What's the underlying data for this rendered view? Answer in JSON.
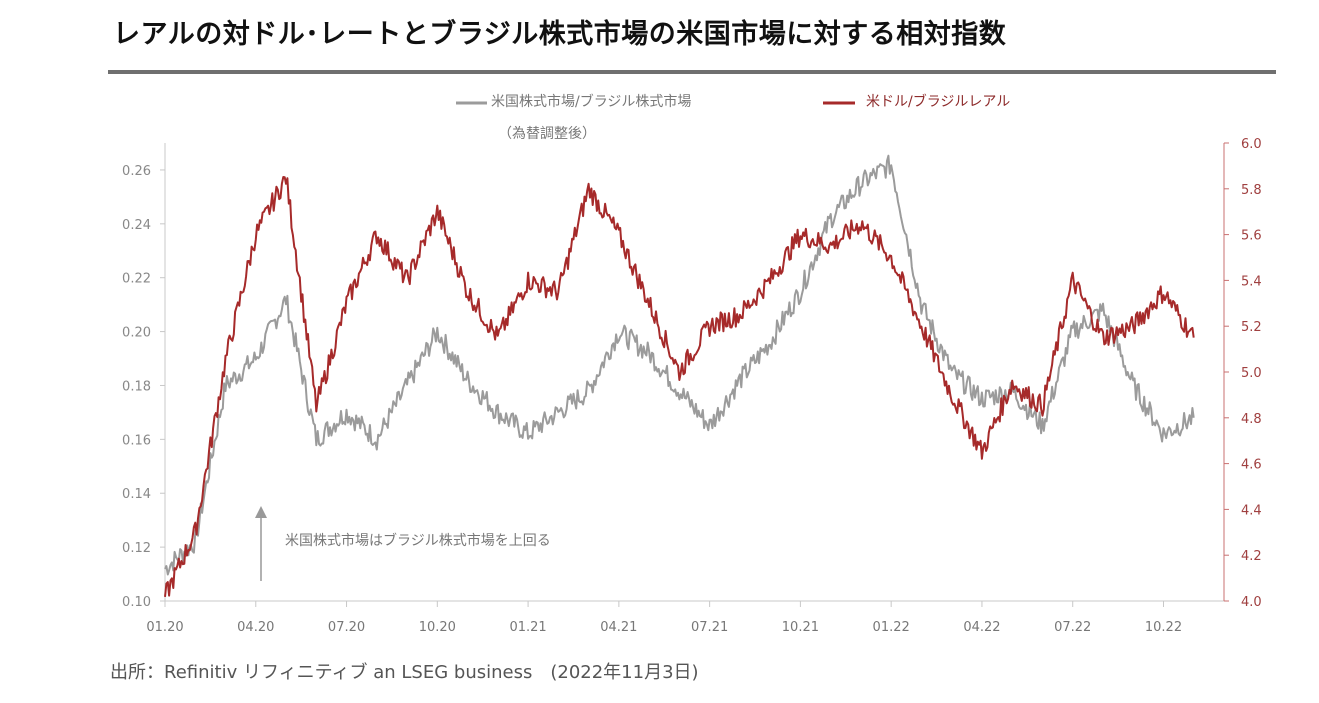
{
  "title": "レアルの対ドル･レートとブラジル株式市場の米国市場に対する相対指数",
  "source": "出所：Refinitiv リフィニティブ an LSEG business　(2022年11月3日)",
  "chart_data": {
    "type": "line",
    "x_ticks": [
      "01.20",
      "04.20",
      "07.20",
      "10.20",
      "01.21",
      "04.21",
      "07.21",
      "10.21",
      "01.22",
      "04.22",
      "07.22",
      "10.22"
    ],
    "y_left": {
      "ylim": [
        0.1,
        0.27
      ],
      "ticks": [
        "0.10",
        "0.12",
        "0.14",
        "0.16",
        "0.18",
        "0.20",
        "0.22",
        "0.24",
        "0.26"
      ]
    },
    "y_right": {
      "ylim": [
        4.0,
        6.0
      ],
      "ticks": [
        "4.0",
        "4.2",
        "4.4",
        "4.6",
        "4.8",
        "5.0",
        "5.2",
        "5.4",
        "5.6",
        "5.8",
        "6.0"
      ]
    },
    "annotation": "米国株式市場はブラジル株式市場を上回る",
    "series": [
      {
        "name": "米国株式市場/ブラジル株式市場",
        "name_sub": "（為替調整後）",
        "axis": "left",
        "color": "#9b9b9b",
        "x": [
          "2020-01",
          "2020-02",
          "2020-03",
          "2020-04",
          "2020-05",
          "2020-06",
          "2020-07",
          "2020-08",
          "2020-09",
          "2020-10",
          "2020-11",
          "2020-12",
          "2021-01",
          "2021-02",
          "2021-03",
          "2021-04",
          "2021-05",
          "2021-06",
          "2021-07",
          "2021-08",
          "2021-09",
          "2021-10",
          "2021-11",
          "2021-12",
          "2022-01",
          "2022-02",
          "2022-03",
          "2022-04",
          "2022-05",
          "2022-06",
          "2022-07",
          "2022-08",
          "2022-09",
          "2022-10",
          "2022-11"
        ],
        "values": [
          0.112,
          0.122,
          0.18,
          0.19,
          0.212,
          0.16,
          0.17,
          0.16,
          0.18,
          0.2,
          0.182,
          0.17,
          0.162,
          0.17,
          0.178,
          0.2,
          0.192,
          0.178,
          0.165,
          0.182,
          0.196,
          0.215,
          0.242,
          0.255,
          0.262,
          0.21,
          0.185,
          0.175,
          0.178,
          0.165,
          0.2,
          0.208,
          0.18,
          0.162,
          0.168
        ]
      },
      {
        "name": "米ドル/ブラジルレアル",
        "axis": "right",
        "color": "#a62a2a",
        "x": [
          "2020-01",
          "2020-02",
          "2020-03",
          "2020-04",
          "2020-05",
          "2020-06",
          "2020-07",
          "2020-08",
          "2020-09",
          "2020-10",
          "2020-11",
          "2020-12",
          "2021-01",
          "2021-02",
          "2021-03",
          "2021-04",
          "2021-05",
          "2021-06",
          "2021-07",
          "2021-08",
          "2021-09",
          "2021-10",
          "2021-11",
          "2021-12",
          "2022-01",
          "2022-02",
          "2022-03",
          "2022-04",
          "2022-05",
          "2022-06",
          "2022-07",
          "2022-08",
          "2022-09",
          "2022-10",
          "2022-11"
        ],
        "values": [
          4.02,
          4.3,
          5.05,
          5.6,
          5.85,
          4.85,
          5.3,
          5.6,
          5.4,
          5.7,
          5.35,
          5.15,
          5.4,
          5.35,
          5.8,
          5.6,
          5.3,
          5.0,
          5.2,
          5.25,
          5.4,
          5.6,
          5.55,
          5.65,
          5.5,
          5.2,
          4.9,
          4.65,
          4.95,
          4.85,
          5.4,
          5.15,
          5.2,
          5.35,
          5.15
        ]
      }
    ]
  }
}
